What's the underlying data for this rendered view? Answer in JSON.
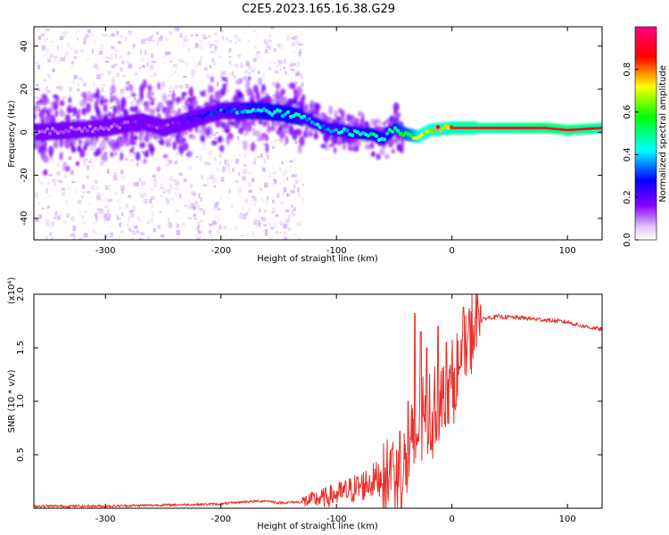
{
  "figure_title": "C2E5.2023.165.16.38.G29",
  "chart_data": [
    {
      "type": "heatmap",
      "title": "C2E5.2023.165.16.38.G29",
      "xlabel": "Height of straight line (km)",
      "ylabel": "Frequency (Hz)",
      "xlim": [
        -362,
        130
      ],
      "ylim": [
        -50,
        49
      ],
      "xticks": [
        -300,
        -200,
        -100,
        0,
        100
      ],
      "yticks": [
        -40,
        -20,
        0,
        20,
        40
      ],
      "colorbar": {
        "label": "Normalized spectral amplitude",
        "range": [
          0,
          1
        ],
        "ticks": [
          0.0,
          0.2,
          0.4,
          0.6,
          0.8
        ],
        "colormap": [
          "#ffffff",
          "#e0c8f8",
          "#8b00ff",
          "#0000ff",
          "#00ffff",
          "#00ff00",
          "#ffff00",
          "#ff0000",
          "#ff0080"
        ]
      },
      "ridge": {
        "x": [
          -360,
          -300,
          -270,
          -250,
          -200,
          -170,
          -150,
          -130,
          -110,
          -90,
          -70,
          -60,
          -50,
          -40,
          -30,
          -20,
          0,
          20,
          50,
          80,
          100,
          130
        ],
        "frequency": [
          0,
          2,
          5,
          2,
          10,
          10,
          9,
          7,
          2,
          0,
          -1,
          -3,
          2,
          -1,
          -2,
          1,
          2,
          2,
          2,
          2,
          1,
          2
        ],
        "amplitude": [
          0.12,
          0.12,
          0.18,
          0.14,
          0.35,
          0.45,
          0.5,
          0.45,
          0.4,
          0.45,
          0.5,
          0.45,
          0.55,
          0.6,
          0.75,
          0.8,
          0.85,
          0.85,
          0.88,
          0.92,
          0.9,
          0.85
        ]
      }
    },
    {
      "type": "line",
      "xlabel": "Height of straight line (km)",
      "ylabel": "SNR (10 * v/v)",
      "y_multiplier": "(x10⁴)",
      "xlim": [
        -362,
        130
      ],
      "ylim": [
        0,
        2.0
      ],
      "xticks": [
        -300,
        -200,
        -100,
        0,
        100
      ],
      "yticks": [
        0.5,
        1.0,
        1.5,
        2.0
      ],
      "ytick_labels": [
        "0.5",
        "1.0",
        "1.5",
        "2.0"
      ],
      "line_color": "#e8302a",
      "series": [
        {
          "name": "SNR",
          "x": [
            -362,
            -300,
            -250,
            -200,
            -180,
            -160,
            -150,
            -130,
            -120,
            -110,
            -100,
            -90,
            -80,
            -70,
            -60,
            -50,
            -45,
            -40,
            -35,
            -32,
            -30,
            -25,
            -20,
            -15,
            -10,
            -5,
            0,
            5,
            10,
            15,
            20,
            25,
            30,
            40,
            60,
            80,
            100,
            110,
            120,
            130
          ],
          "y": [
            0.02,
            0.02,
            0.03,
            0.04,
            0.06,
            0.07,
            0.05,
            0.06,
            0.08,
            0.1,
            0.13,
            0.16,
            0.2,
            0.25,
            0.3,
            0.32,
            0.36,
            0.4,
            0.52,
            0.62,
            0.7,
            0.8,
            0.85,
            0.88,
            0.95,
            1.05,
            1.15,
            1.25,
            1.4,
            1.55,
            1.7,
            1.75,
            1.78,
            1.79,
            1.78,
            1.76,
            1.74,
            1.71,
            1.69,
            1.67
          ]
        }
      ],
      "spikes": [
        {
          "x": -52,
          "y": 0.55
        },
        {
          "x": -45,
          "y": 0.72
        },
        {
          "x": -38,
          "y": 1.0
        },
        {
          "x": -32,
          "y": 1.82
        },
        {
          "x": -27,
          "y": 1.65
        },
        {
          "x": -22,
          "y": 1.5
        },
        {
          "x": -12,
          "y": 1.7
        },
        {
          "x": -5,
          "y": 1.55
        },
        {
          "x": 10,
          "y": 1.88
        },
        {
          "x": 22,
          "y": 2.0
        }
      ]
    }
  ]
}
